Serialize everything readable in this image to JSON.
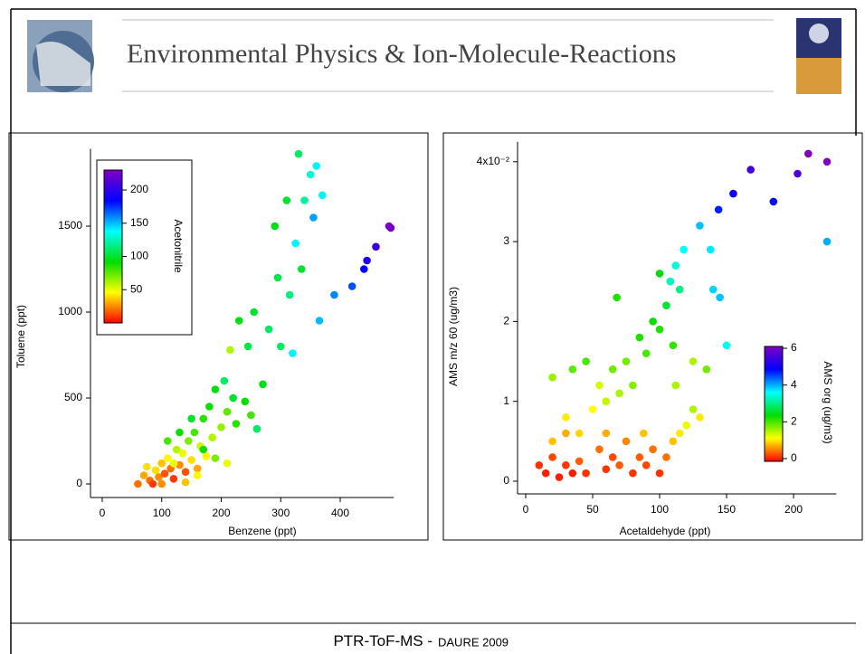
{
  "header": {
    "title": "Environmental Physics & Ion-Molecule-Reactions"
  },
  "footer": {
    "left": "PTR-ToF-MS  -",
    "right": "DAURE 2009"
  },
  "chart_data": [
    {
      "type": "scatter",
      "x_label": "Benzene (ppt)",
      "y_label": "Toluene (ppt)",
      "colorbar_label": "Acetonitrile",
      "xlim": [
        -10,
        490
      ],
      "ylim": [
        -50,
        1950
      ],
      "xticks": [
        0,
        100,
        200,
        300,
        400
      ],
      "yticks": [
        0,
        500,
        1000,
        1500
      ],
      "clim": [
        0,
        230
      ],
      "cticks": [
        50,
        100,
        150,
        200
      ],
      "colorscale": [
        "#ff0000",
        "#ffff00",
        "#00dd00",
        "#00ffff",
        "#0000ff",
        "#8000c0"
      ],
      "x": [
        70,
        80,
        90,
        95,
        100,
        105,
        110,
        115,
        120,
        125,
        130,
        135,
        140,
        145,
        150,
        155,
        160,
        165,
        170,
        175,
        180,
        185,
        190,
        200,
        205,
        210,
        215,
        220,
        225,
        230,
        240,
        245,
        250,
        255,
        260,
        270,
        280,
        290,
        295,
        300,
        310,
        315,
        320,
        325,
        330,
        335,
        340,
        350,
        355,
        360,
        365,
        370,
        390,
        420,
        440,
        445,
        460,
        482,
        485,
        60,
        75,
        85,
        110,
        130,
        150,
        170,
        190,
        210,
        100,
        140,
        120,
        160
      ],
      "y": [
        50,
        20,
        80,
        40,
        120,
        60,
        150,
        90,
        30,
        200,
        110,
        180,
        70,
        250,
        140,
        300,
        90,
        220,
        380,
        160,
        450,
        270,
        550,
        330,
        600,
        420,
        780,
        500,
        350,
        950,
        480,
        800,
        400,
        1000,
        320,
        580,
        900,
        1500,
        1200,
        800,
        1650,
        1100,
        760,
        1400,
        1920,
        1250,
        1650,
        1800,
        1550,
        1850,
        950,
        1680,
        1100,
        1150,
        1250,
        1300,
        1380,
        1500,
        1490,
        0,
        100,
        0,
        250,
        300,
        380,
        200,
        150,
        120,
        0,
        10,
        120,
        50
      ],
      "c": [
        30,
        20,
        40,
        25,
        35,
        15,
        45,
        20,
        10,
        60,
        25,
        50,
        15,
        70,
        40,
        80,
        30,
        55,
        85,
        45,
        90,
        60,
        95,
        65,
        110,
        75,
        60,
        100,
        85,
        95,
        90,
        105,
        80,
        100,
        110,
        95,
        110,
        95,
        105,
        110,
        100,
        115,
        140,
        140,
        110,
        100,
        120,
        130,
        155,
        140,
        150,
        140,
        160,
        170,
        185,
        195,
        205,
        230,
        225,
        20,
        40,
        10,
        80,
        90,
        100,
        90,
        70,
        50,
        25,
        35,
        50,
        45
      ]
    },
    {
      "type": "scatter",
      "x_label": "Acetaldehyde (ppt)",
      "y_label": "AMS m/z 60 (ug/m3)",
      "colorbar_label": "AMS org (ug/m3)",
      "xlim": [
        -5,
        232
      ],
      "ylim": [
        -0.001,
        0.0425
      ],
      "xticks": [
        0,
        50,
        100,
        150,
        200
      ],
      "yticks": [
        0,
        {
          "value": 0.01,
          "label": "1"
        },
        {
          "value": 0.02,
          "label": "2"
        },
        {
          "value": 0.03,
          "label": "3"
        },
        {
          "value": 0.04,
          "label": "4x10⁻²"
        }
      ],
      "clim": [
        -0.15,
        6.1
      ],
      "cticks": [
        0,
        2,
        4,
        6
      ],
      "colorscale": [
        "#ff0000",
        "#ffff00",
        "#00dd00",
        "#00ffff",
        "#0000ff",
        "#8000c0"
      ],
      "x": [
        10,
        15,
        20,
        25,
        30,
        35,
        40,
        45,
        55,
        60,
        65,
        70,
        75,
        80,
        85,
        90,
        95,
        100,
        105,
        110,
        115,
        120,
        20,
        30,
        40,
        50,
        55,
        60,
        65,
        70,
        75,
        80,
        85,
        90,
        95,
        100,
        105,
        110,
        115,
        20,
        35,
        45,
        68,
        100,
        108,
        112,
        118,
        125,
        130,
        138,
        140,
        145,
        150,
        125,
        130,
        135,
        144,
        155,
        168,
        185,
        203,
        211,
        225,
        225,
        30,
        60,
        88,
        112
      ],
      "y": [
        0.002,
        0.001,
        0.003,
        0.0005,
        0.002,
        0.001,
        0.0025,
        0.001,
        0.004,
        0.0015,
        0.003,
        0.002,
        0.005,
        0.001,
        0.003,
        0.002,
        0.004,
        0.001,
        0.003,
        0.005,
        0.006,
        0.007,
        0.005,
        0.008,
        0.006,
        0.009,
        0.012,
        0.01,
        0.014,
        0.011,
        0.015,
        0.012,
        0.018,
        0.016,
        0.02,
        0.019,
        0.022,
        0.017,
        0.024,
        0.013,
        0.014,
        0.015,
        0.023,
        0.026,
        0.025,
        0.027,
        0.029,
        0.015,
        0.032,
        0.029,
        0.024,
        0.023,
        0.017,
        0.009,
        0.008,
        0.014,
        0.034,
        0.036,
        0.039,
        0.035,
        0.0385,
        0.041,
        0.04,
        0.03,
        0.006,
        0.006,
        0.006,
        0.012
      ],
      "c": [
        0.1,
        0,
        0.2,
        0,
        0.1,
        0,
        0.3,
        0.1,
        0.4,
        0.1,
        0.2,
        0.3,
        0.5,
        0.1,
        0.3,
        0.2,
        0.4,
        0.1,
        0.4,
        0.8,
        1.0,
        1.2,
        0.8,
        1.0,
        0.9,
        1.1,
        1.3,
        1.4,
        1.8,
        1.5,
        1.8,
        1.7,
        2.2,
        2.0,
        2.3,
        2.2,
        2.6,
        2.1,
        3.0,
        1.6,
        1.9,
        2.0,
        2.2,
        2.4,
        3.3,
        3.4,
        3.6,
        1.5,
        3.9,
        3.7,
        3.8,
        3.9,
        3.5,
        1.5,
        1.0,
        1.8,
        4.7,
        5.0,
        5.5,
        4.8,
        5.6,
        6.5,
        6.2,
        4.0,
        0.7,
        0.7,
        0.8,
        1.5
      ]
    }
  ]
}
